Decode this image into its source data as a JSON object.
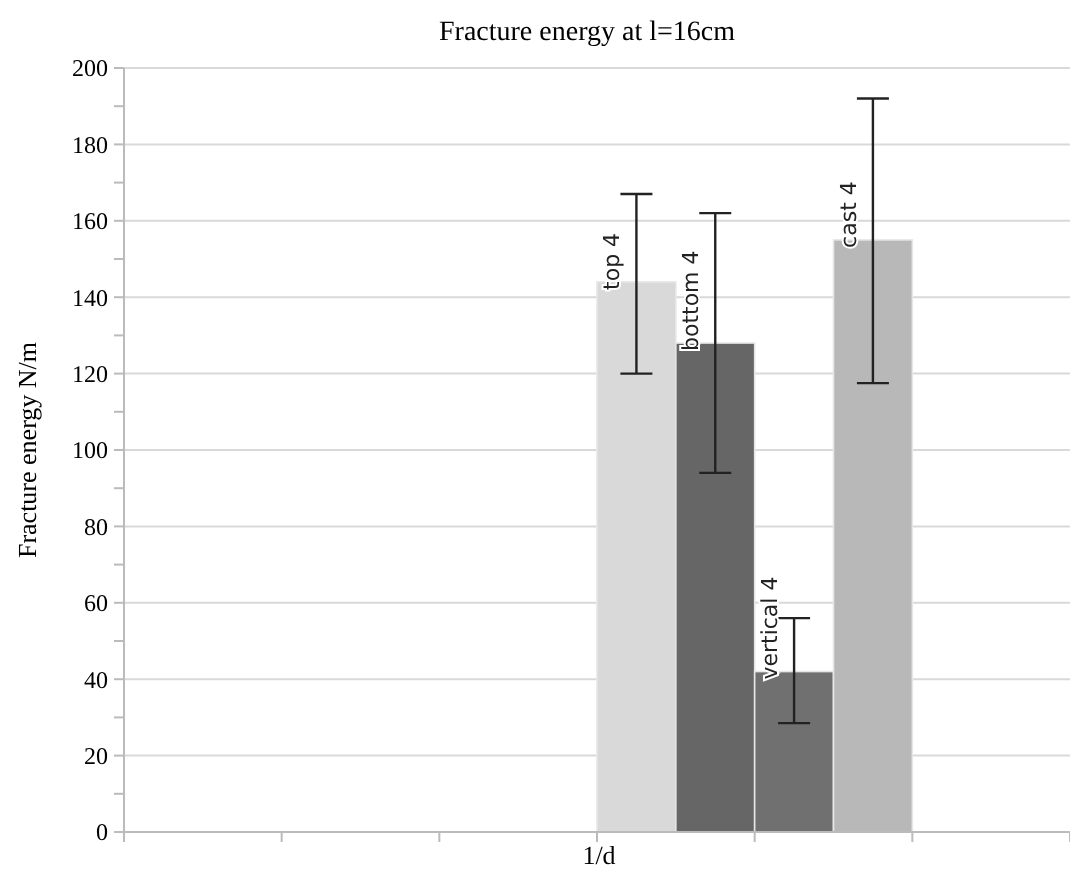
{
  "chart_data": {
    "type": "bar",
    "title": "Fracture energy at l=16cm",
    "xlabel": "1/d",
    "ylabel": "Fracture energy N/m",
    "categories": [
      null,
      null,
      null,
      null,
      null,
      null,
      null,
      null,
      null,
      null,
      null,
      null
    ],
    "stacked": true,
    "series": [
      {
        "name": "top 4",
        "color": "#d9d9d9",
        "values": [
          null,
          null,
          null,
          null,
          null,
          null,
          144,
          null,
          null,
          null,
          null,
          null
        ],
        "errors": [
          null,
          null,
          null,
          null,
          null,
          null,
          [
            120,
            167
          ],
          null,
          null,
          null,
          null,
          null
        ]
      },
      {
        "name": "bottom 4",
        "color": "#666666",
        "values": [
          null,
          null,
          null,
          null,
          null,
          null,
          null,
          128,
          null,
          null,
          null,
          null
        ],
        "errors": [
          null,
          null,
          null,
          null,
          null,
          null,
          null,
          [
            94,
            162
          ],
          null,
          null,
          null,
          null
        ]
      },
      {
        "name": "vertical 4",
        "color": "#707070",
        "values": [
          null,
          null,
          null,
          null,
          null,
          null,
          null,
          null,
          42,
          null,
          null,
          null
        ],
        "errors": [
          null,
          null,
          null,
          null,
          null,
          null,
          null,
          null,
          [
            28.5,
            56
          ],
          null,
          null,
          null
        ]
      },
      {
        "name": "cast 4",
        "color": "#b8b8b8",
        "values": [
          null,
          null,
          null,
          null,
          null,
          null,
          null,
          null,
          null,
          155,
          null,
          null
        ],
        "errors": [
          null,
          null,
          null,
          null,
          null,
          null,
          null,
          null,
          null,
          [
            117.5,
            192
          ],
          null,
          null
        ]
      }
    ],
    "ylim": [
      0,
      200
    ],
    "yticks": [
      0,
      {
        "value": 10,
        "label": null
      },
      20,
      {
        "value": 30,
        "label": null
      },
      40,
      {
        "value": 50,
        "label": null
      },
      60,
      {
        "value": 70,
        "label": null
      },
      80,
      {
        "value": 90,
        "label": null
      },
      100,
      {
        "value": 110,
        "label": null
      },
      120,
      {
        "value": 130,
        "label": null
      },
      140,
      {
        "value": 150,
        "label": null
      },
      160,
      {
        "value": 170,
        "label": null
      },
      180,
      {
        "value": 190,
        "label": null
      },
      200
    ],
    "grid": "y"
  }
}
